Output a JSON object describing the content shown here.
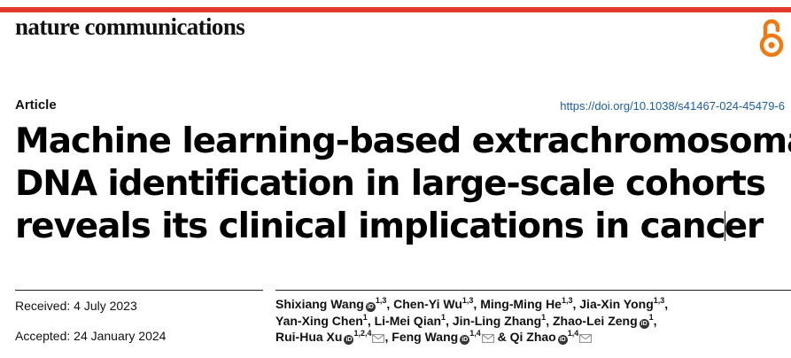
{
  "journal": "nature communications",
  "article_type": "Article",
  "doi": "https://doi.org/10.1038/s41467-024-45479-6",
  "title": {
    "line1": "Machine learning-based extrachromosomal",
    "line2": "DNA identification in large-scale cohorts",
    "line3a": "reveals its clinical implications in canc",
    "line3b": "er"
  },
  "dates": {
    "received": "Received: 4 July 2023",
    "accepted": "Accepted: 24 January 2024"
  },
  "authors": [
    {
      "name": "Shixiang Wang",
      "sup": "1,3",
      "orcid": true,
      "email": false
    },
    {
      "name": "Chen-Yi Wu",
      "sup": "1,3",
      "orcid": false,
      "email": false
    },
    {
      "name": "Ming-Ming He",
      "sup": "1,3",
      "orcid": false,
      "email": false
    },
    {
      "name": "Jia-Xin Yong",
      "sup": "1,3",
      "orcid": false,
      "email": false
    },
    {
      "name": "Yan-Xing Chen",
      "sup": "1",
      "orcid": false,
      "email": false
    },
    {
      "name": "Li-Mei Qian",
      "sup": "1",
      "orcid": false,
      "email": false
    },
    {
      "name": "Jin-Ling Zhang",
      "sup": "1",
      "orcid": false,
      "email": false
    },
    {
      "name": "Zhao-Lei Zeng",
      "sup": "1",
      "orcid": true,
      "email": false
    },
    {
      "name": "Rui-Hua Xu",
      "sup": "1,2,4",
      "orcid": true,
      "email": true
    },
    {
      "name": "Feng Wang",
      "sup": "1,4",
      "orcid": true,
      "email": true
    },
    {
      "name": "Qi Zhao",
      "sup": "1,4",
      "orcid": true,
      "email": true
    }
  ],
  "colors": {
    "accent": "#e2392e",
    "link": "#1a5fa3"
  },
  "icons": [
    "open-access-icon",
    "orcid-icon",
    "email-icon"
  ]
}
